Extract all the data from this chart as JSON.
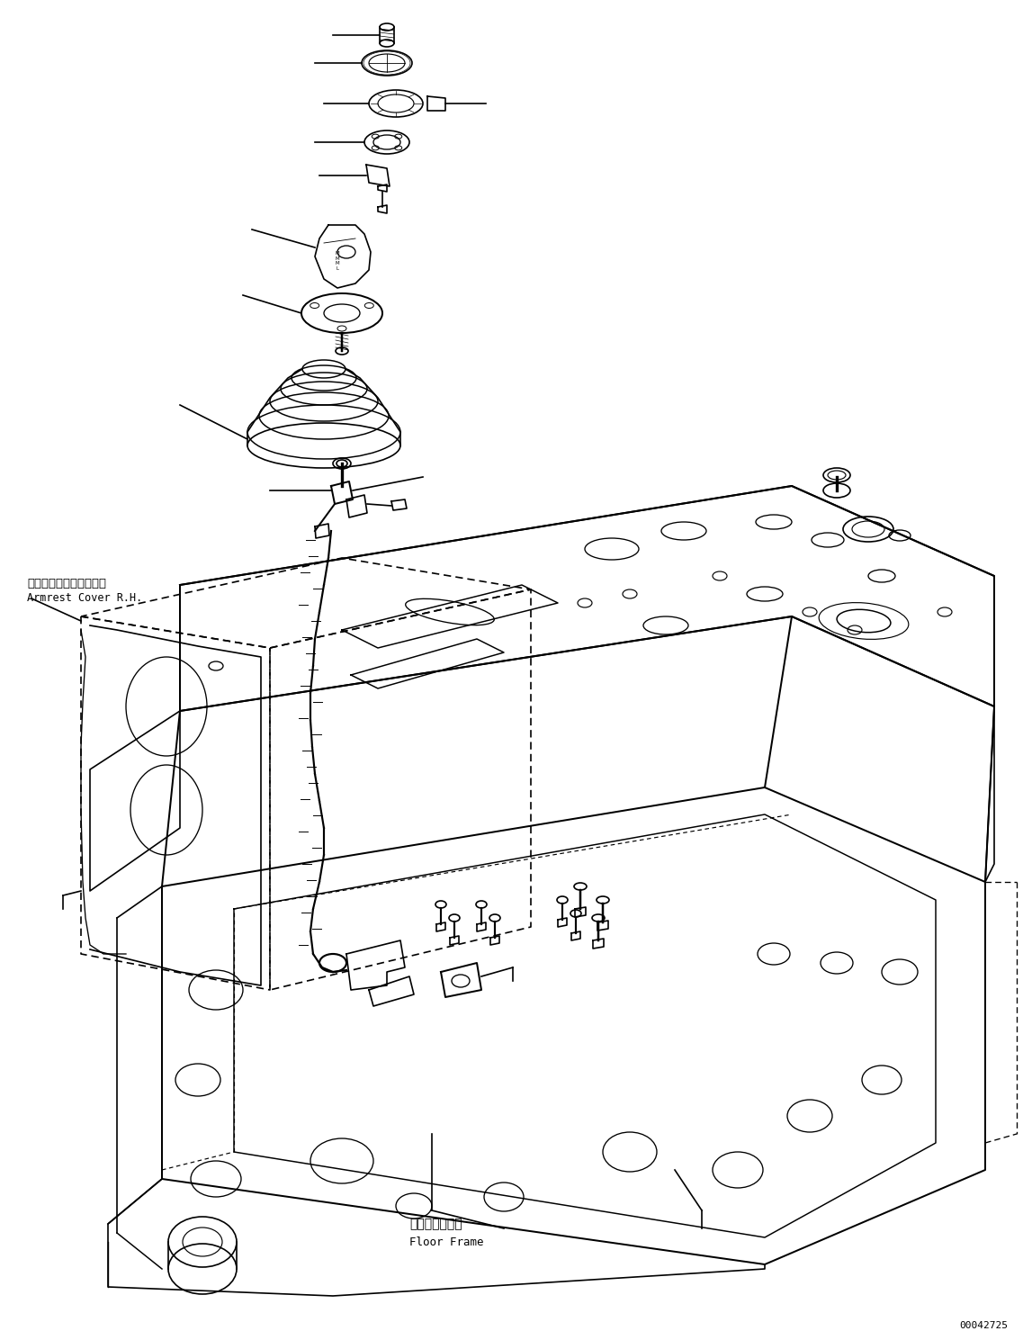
{
  "figsize": [
    11.47,
    14.89
  ],
  "dpi": 100,
  "bg_color": "#ffffff",
  "line_color": "#000000",
  "lw": 1.2,
  "labels": {
    "armrest_jp": "アームレストカバー　右",
    "armrest_en": "Armrest Cover R.H.",
    "floor_jp": "フロアフレーム",
    "floor_en": "Floor Frame",
    "part_num": "00042725"
  }
}
